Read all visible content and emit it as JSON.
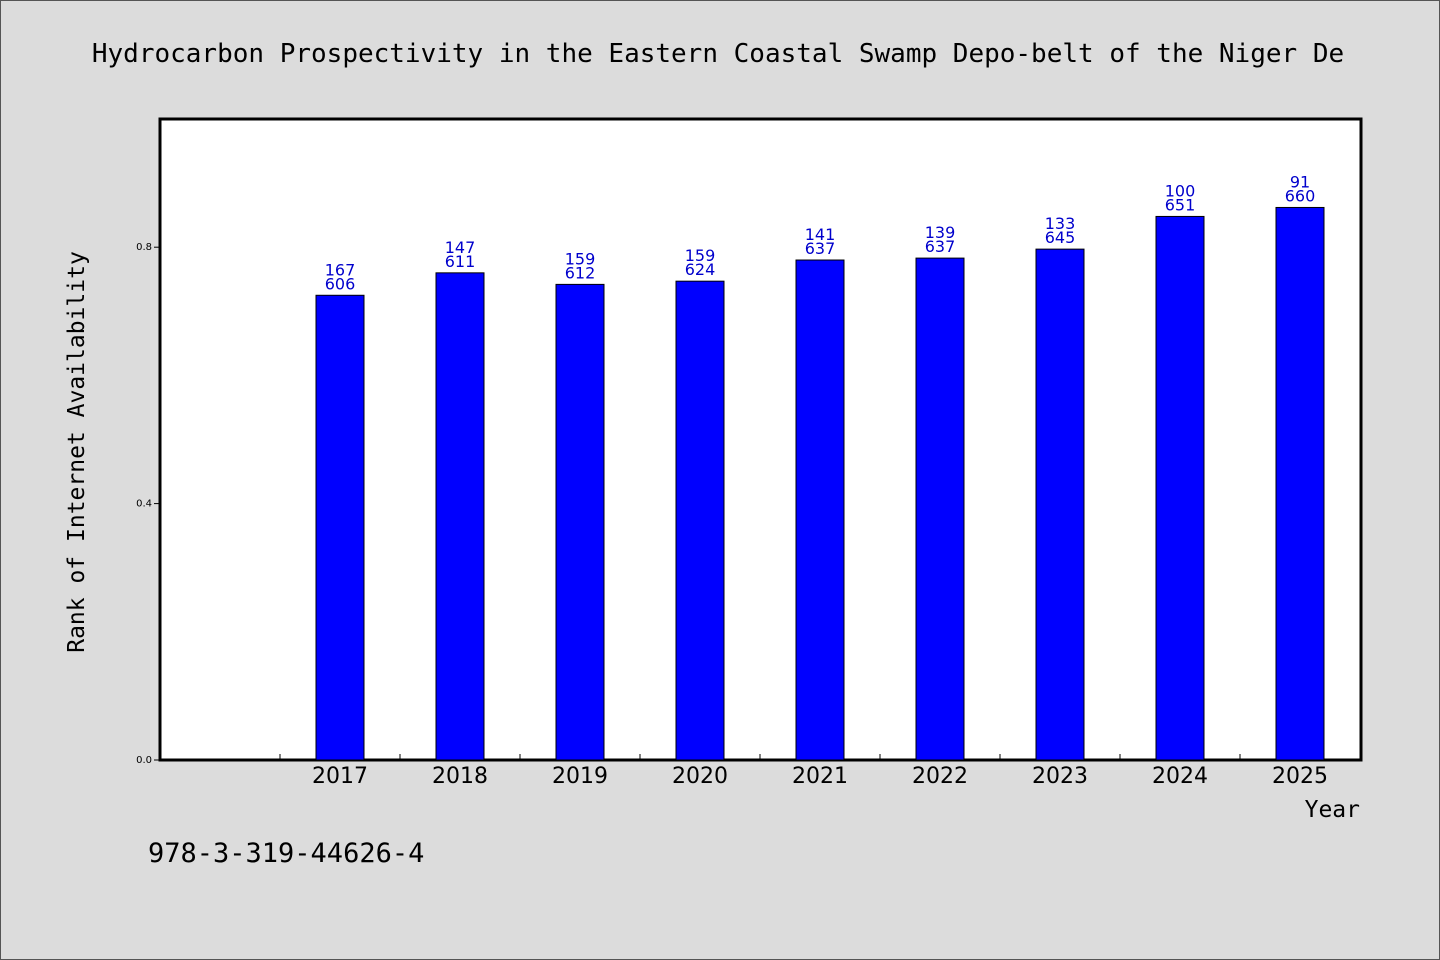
{
  "chart_data": {
    "type": "bar",
    "title": "Hydrocarbon Prospectivity in the Eastern Coastal Swamp Depo-belt of the Niger De",
    "xlabel": "Year",
    "ylabel": "Rank of Internet Availability",
    "categories": [
      "2017",
      "2018",
      "2019",
      "2020",
      "2021",
      "2022",
      "2023",
      "2024",
      "2025"
    ],
    "values": [
      0.725,
      0.76,
      0.742,
      0.747,
      0.78,
      0.783,
      0.797,
      0.848,
      0.862
    ],
    "bar_labels_top": [
      "167",
      "147",
      "159",
      "159",
      "141",
      "139",
      "133",
      "100",
      "91"
    ],
    "bar_labels_bottom": [
      "606",
      "611",
      "612",
      "624",
      "637",
      "637",
      "645",
      "651",
      "660"
    ],
    "yticks": [
      0.0,
      0.4,
      0.8
    ],
    "ytick_labels": [
      "0.0",
      "0.4",
      "0.8"
    ],
    "ylim": [
      0,
      1.0
    ],
    "bar_color": "#0000ff",
    "label_color": "#0000cc",
    "grid": false
  },
  "footer": {
    "isbn": "978-3-319-44626-4"
  }
}
